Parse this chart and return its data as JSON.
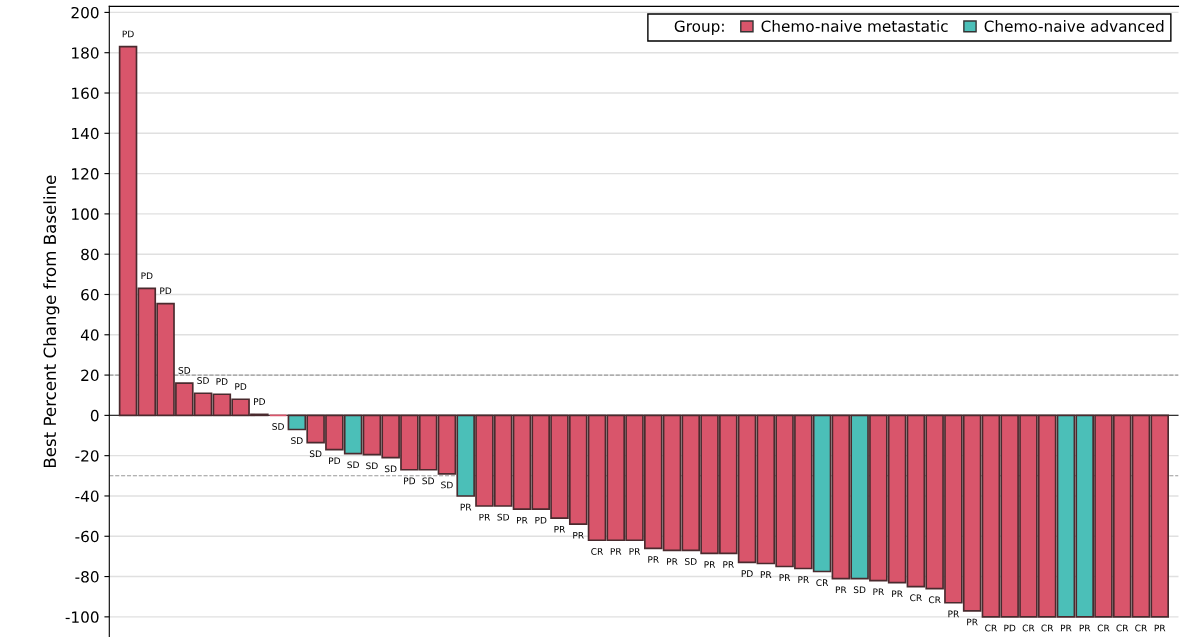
{
  "chart_data": {
    "type": "bar",
    "ylabel": "Best Percent Change from Baseline",
    "legend_title": "Group:",
    "categories": [
      null,
      null,
      null,
      null,
      null,
      null,
      null,
      null,
      null,
      null,
      null,
      null,
      null,
      null,
      null,
      null,
      null,
      null,
      null,
      null,
      null,
      null,
      null,
      null,
      null,
      null,
      null,
      null,
      null,
      null,
      null,
      null,
      null,
      null,
      null,
      null,
      null,
      null,
      null,
      null,
      null,
      null,
      null,
      null,
      null,
      null,
      null,
      null,
      null,
      null,
      null,
      null,
      null,
      null,
      null,
      null
    ],
    "series": [
      {
        "name": "Chemo-naive metastatic",
        "color": "#d9556b",
        "values": [
          183,
          63,
          55.5,
          16,
          11,
          10.5,
          8,
          0.5,
          0,
          null,
          -13.5,
          -17,
          null,
          -19.5,
          -21,
          -27,
          -27,
          -29,
          null,
          -45,
          -45,
          -46.5,
          -46.5,
          -51,
          -54,
          -62,
          -62,
          -62,
          -66,
          -67,
          -67,
          -68.5,
          -68.5,
          -73,
          -73.5,
          -75,
          -76,
          null,
          -81,
          null,
          -82,
          -83,
          -85,
          -86,
          -93,
          -97,
          -100,
          -100,
          -100,
          -100,
          null,
          null,
          -100,
          -100,
          -100,
          -100
        ],
        "value_labels": [
          "PD",
          "PD",
          "PD",
          "SD",
          "SD",
          "PD",
          "PD",
          "PD",
          "SD",
          null,
          "SD",
          "PD",
          null,
          "SD",
          "SD",
          "PD",
          "SD",
          "SD",
          null,
          "PR",
          "SD",
          "PR",
          "PD",
          "PR",
          "PR",
          "CR",
          "PR",
          "PR",
          "PR",
          "PR",
          "SD",
          "PR",
          "PR",
          "PD",
          "PR",
          "PR",
          "PR",
          null,
          "PR",
          null,
          "PR",
          "PR",
          "CR",
          "CR",
          "PR",
          "PR",
          "CR",
          "PD",
          "CR",
          "CR",
          null,
          null,
          "CR",
          "CR",
          "CR",
          "PR"
        ]
      },
      {
        "name": "Chemo-naive advanced",
        "color": "#4bbfb8",
        "values": [
          null,
          null,
          null,
          null,
          null,
          null,
          null,
          null,
          null,
          -7,
          null,
          null,
          -19,
          null,
          null,
          null,
          null,
          null,
          -40,
          null,
          null,
          null,
          null,
          null,
          null,
          null,
          null,
          null,
          null,
          null,
          null,
          null,
          null,
          null,
          null,
          null,
          null,
          -77.5,
          null,
          -81,
          null,
          null,
          null,
          null,
          null,
          null,
          null,
          null,
          null,
          null,
          -100,
          -100,
          null,
          null,
          null,
          null
        ],
        "value_labels": [
          null,
          null,
          null,
          null,
          null,
          null,
          null,
          null,
          null,
          "SD",
          null,
          null,
          "SD",
          null,
          null,
          null,
          null,
          null,
          "PR",
          null,
          null,
          null,
          null,
          null,
          null,
          null,
          null,
          null,
          null,
          null,
          null,
          null,
          null,
          null,
          null,
          null,
          null,
          "CR",
          null,
          "SD",
          null,
          null,
          null,
          null,
          null,
          null,
          null,
          null,
          null,
          null,
          "PR",
          "PR",
          null,
          null,
          null,
          null
        ]
      }
    ],
    "ylim": [
      -110,
      203
    ],
    "yticks": [
      -100,
      -80,
      -60,
      -40,
      -20,
      0,
      20,
      40,
      60,
      80,
      100,
      120,
      140,
      160,
      180,
      200
    ],
    "ref_lines": [
      {
        "axis": "y",
        "value": 20,
        "color": "#999999",
        "line_style": "dashed"
      },
      {
        "axis": "y",
        "value": -30,
        "color": "#999999",
        "line_style": "dashed"
      }
    ],
    "grid": "y",
    "legend": "top right",
    "tick_labels": "y"
  }
}
